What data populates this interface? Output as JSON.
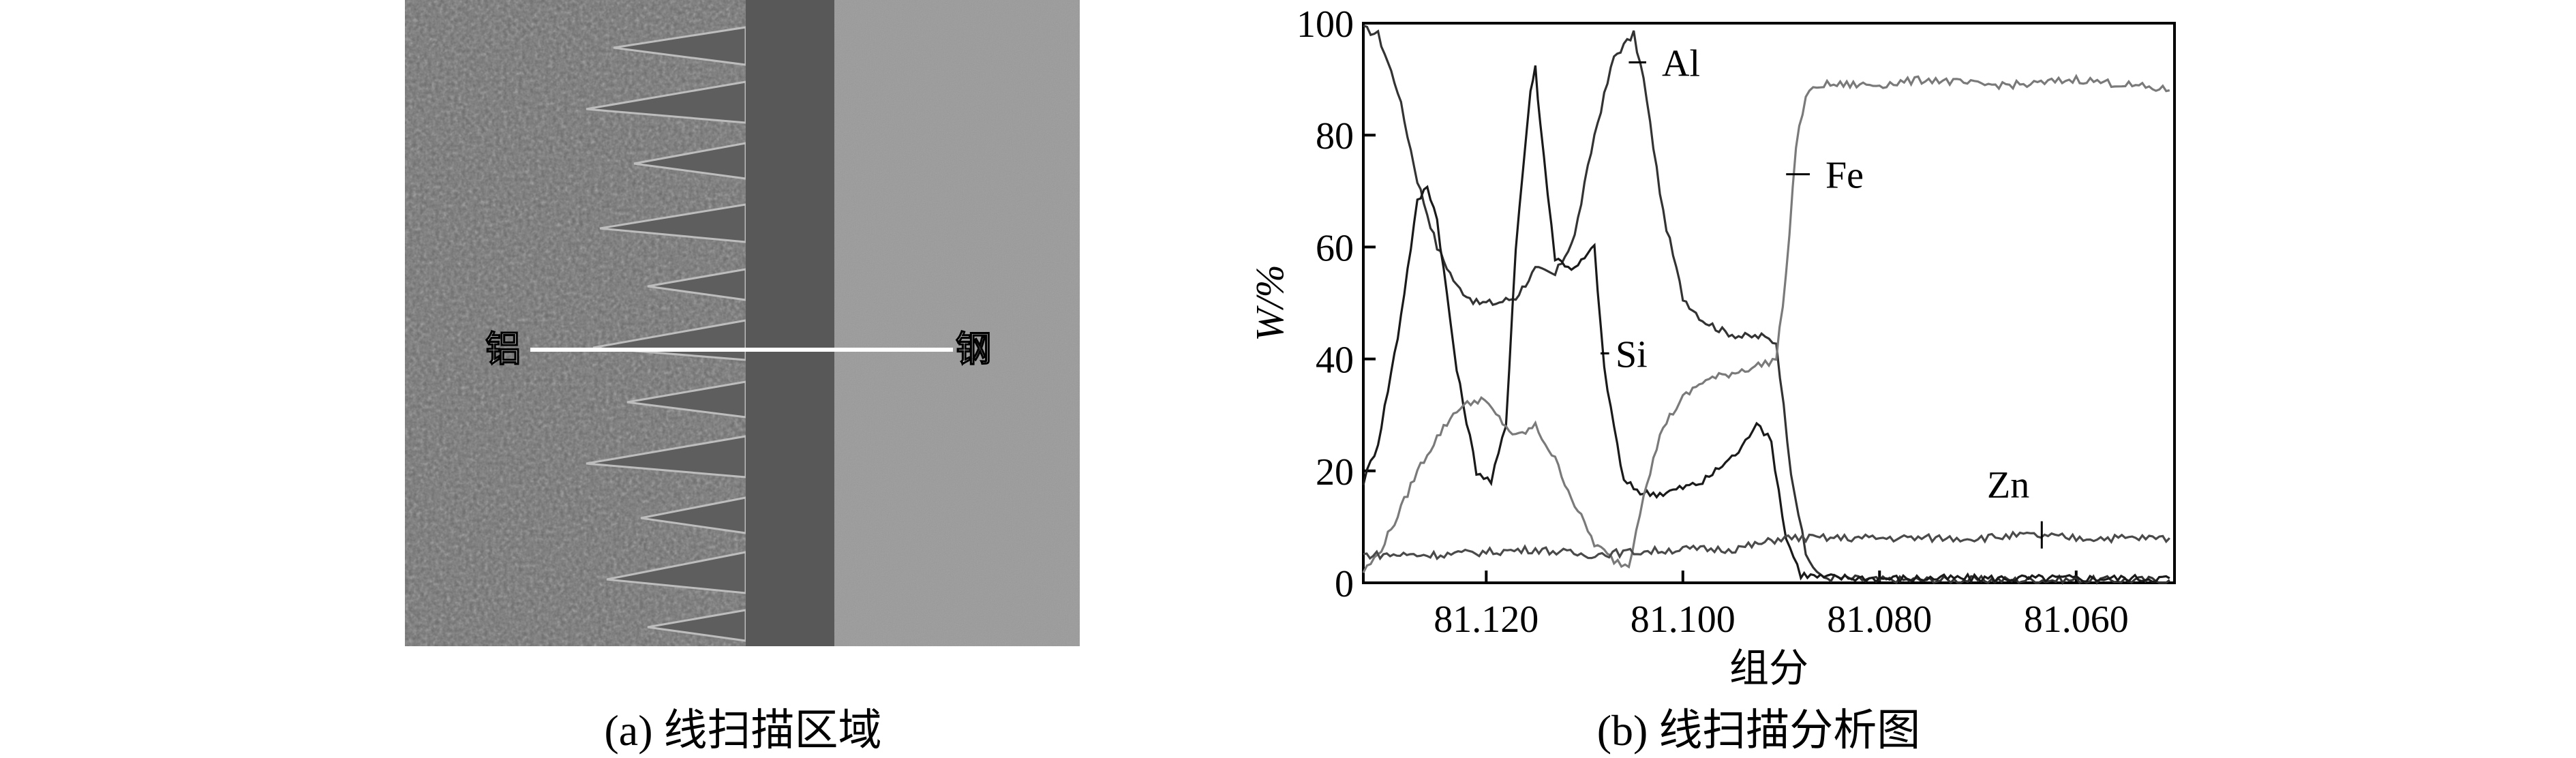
{
  "panel_a": {
    "label_left": "铝",
    "label_right": "钢",
    "caption": "(a) 线扫描区域",
    "colors": {
      "aluminum_region": "#6c6c6c",
      "reaction_layer": "#585858",
      "steel_region": "#9a9a9a",
      "scan_line": "#ffffff"
    }
  },
  "panel_b": {
    "caption": "(b) 线扫描分析图"
  },
  "chart_data": {
    "type": "line",
    "xlabel": "组分",
    "ylabel": "W/%",
    "xlim": [
      81.1325,
      81.05
    ],
    "ylim": [
      0,
      100
    ],
    "x_ticks": [
      81.12,
      81.1,
      81.08,
      81.06
    ],
    "x_tick_labels": [
      "81.120",
      "81.100",
      "81.080",
      "81.060"
    ],
    "y_ticks": [
      0,
      20,
      40,
      60,
      80,
      100
    ],
    "y_tick_labels": [
      "0",
      "20",
      "40",
      "60",
      "80",
      "100"
    ],
    "grid": false,
    "legend": "inline labels",
    "series": [
      {
        "name": "Al",
        "color": "#333333",
        "x": [
          81.1325,
          81.131,
          81.129,
          81.127,
          81.125,
          81.123,
          81.121,
          81.119,
          81.117,
          81.115,
          81.113,
          81.111,
          81.109,
          81.107,
          81.105,
          81.104,
          81.102,
          81.1,
          81.098,
          81.096,
          81.094,
          81.092,
          81.0905,
          81.089,
          81.0875,
          81.086,
          81.08,
          81.07,
          81.06,
          81.0505
        ],
        "values": [
          99,
          98,
          88,
          72,
          60,
          53,
          50,
          50,
          51,
          56,
          55,
          62,
          80,
          94,
          98,
          90,
          66,
          51,
          47,
          45,
          44,
          44,
          43,
          20,
          5,
          1,
          0.5,
          0.5,
          0.5,
          0.5
        ]
      },
      {
        "name": "Si",
        "color": "#1a1a1a",
        "x": [
          81.1325,
          81.131,
          81.129,
          81.127,
          81.126,
          81.125,
          81.123,
          81.121,
          81.1195,
          81.118,
          81.117,
          81.1155,
          81.115,
          81.1145,
          81.113,
          81.111,
          81.109,
          81.108,
          81.106,
          81.104,
          81.102,
          81.1,
          81.098,
          81.096,
          81.094,
          81.0925,
          81.091,
          81.0895,
          81.088,
          81.086,
          81.08,
          81.07,
          81.06,
          81.0505
        ],
        "values": [
          18,
          25,
          44,
          68,
          71,
          65,
          38,
          20,
          18,
          28,
          60,
          88,
          92,
          82,
          58,
          56,
          60,
          38,
          18,
          16,
          16,
          17,
          18,
          21,
          24,
          29,
          25,
          8,
          1.5,
          1,
          0.8,
          0.8,
          0.8,
          0.8
        ]
      },
      {
        "name": "Fe",
        "color": "#7a7a7a",
        "x": [
          81.1325,
          81.131,
          81.129,
          81.127,
          81.125,
          81.123,
          81.1205,
          81.119,
          81.117,
          81.115,
          81.113,
          81.111,
          81.109,
          81.107,
          81.1055,
          81.104,
          81.102,
          81.1,
          81.098,
          81.096,
          81.094,
          81.092,
          81.0905,
          81.0895,
          81.0885,
          81.0875,
          81.086,
          81.084,
          81.08,
          81.075,
          81.07,
          81.065,
          81.06,
          81.055,
          81.0505
        ],
        "values": [
          2,
          5,
          12,
          20,
          26,
          31,
          33,
          30,
          26,
          28,
          22,
          14,
          7,
          4,
          3,
          16,
          28,
          33,
          36,
          37,
          38,
          39,
          40,
          55,
          78,
          87,
          89,
          89,
          89,
          90,
          89,
          89,
          90,
          89,
          88
        ]
      },
      {
        "name": "Zn",
        "color": "#4a4a4a",
        "x": [
          81.1325,
          81.125,
          81.12,
          81.115,
          81.11,
          81.105,
          81.1,
          81.095,
          81.092,
          81.09,
          81.085,
          81.08,
          81.075,
          81.07,
          81.065,
          81.06,
          81.055,
          81.0505
        ],
        "values": [
          5,
          5,
          5.5,
          6,
          5,
          5.5,
          6,
          6,
          7,
          8,
          8,
          8,
          8,
          8,
          8.5,
          8,
          8,
          8
        ]
      }
    ]
  }
}
